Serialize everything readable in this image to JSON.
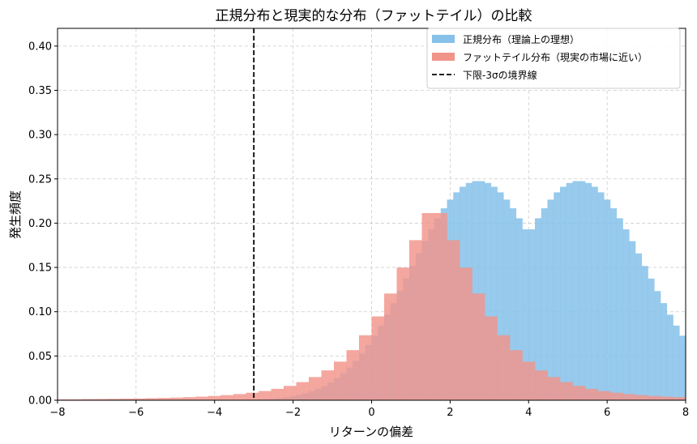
{
  "chart_data": {
    "type": "bar",
    "title": "正規分布と現実的な分布（ファットテイル）の比較",
    "xlabel": "リターンの偏差",
    "ylabel": "発生頻度",
    "xlim": [
      -8,
      8
    ],
    "ylim": [
      0,
      0.42
    ],
    "x_ticks": [
      "−8",
      "−6",
      "−4",
      "−2",
      "0",
      "2",
      "4",
      "6",
      "8"
    ],
    "x_tick_values": [
      -8,
      -6,
      -4,
      -2,
      0,
      2,
      4,
      6,
      8
    ],
    "y_ticks": [
      "0.00",
      "0.05",
      "0.10",
      "0.15",
      "0.20",
      "0.25",
      "0.30",
      "0.35",
      "0.40"
    ],
    "y_tick_values": [
      0,
      0.05,
      0.1,
      0.15,
      0.2,
      0.25,
      0.3,
      0.35,
      0.4
    ],
    "grid": true,
    "legend_position": "top-right",
    "series": [
      {
        "name": "正規分布（理論上の理想）",
        "color": "#85c1e9",
        "bin_width": 0.16,
        "bin_start": -4.0,
        "values": [
          0.0001,
          0.0002,
          0.0003,
          0.0003,
          0.0004,
          0.0006,
          0.0008,
          0.0011,
          0.0015,
          0.002,
          0.0027,
          0.0035,
          0.0047,
          0.0061,
          0.0078,
          0.01,
          0.0127,
          0.016,
          0.02,
          0.0248,
          0.0304,
          0.0369,
          0.0444,
          0.0529,
          0.0624,
          0.0729,
          0.0843,
          0.0966,
          0.1097,
          0.1233,
          0.1374,
          0.1516,
          0.1658,
          0.1797,
          0.193,
          0.2055,
          0.2168,
          0.2266,
          0.2348,
          0.2411,
          0.2454,
          0.2475,
          0.2475,
          0.2454,
          0.2411,
          0.2348,
          0.2266,
          0.2168,
          0.2055,
          0.193
        ]
      },
      {
        "name": "ファットテイル分布（現実の市場に近い）",
        "color": "#f1948a",
        "bin_width": 0.32,
        "bin_start": -8.0,
        "values": [
          0.001,
          0.0011,
          0.0013,
          0.0014,
          0.0016,
          0.0018,
          0.002,
          0.0023,
          0.0026,
          0.003,
          0.0035,
          0.0041,
          0.0049,
          0.0058,
          0.007,
          0.0085,
          0.0104,
          0.0129,
          0.0162,
          0.0205,
          0.0262,
          0.0337,
          0.0436,
          0.0566,
          0.0734,
          0.0947,
          0.1205,
          0.1498,
          0.1808,
          0.2114
        ]
      }
    ],
    "reference_line": {
      "label": "下限-3σの境界線",
      "x": -3,
      "color": "#000000"
    }
  }
}
